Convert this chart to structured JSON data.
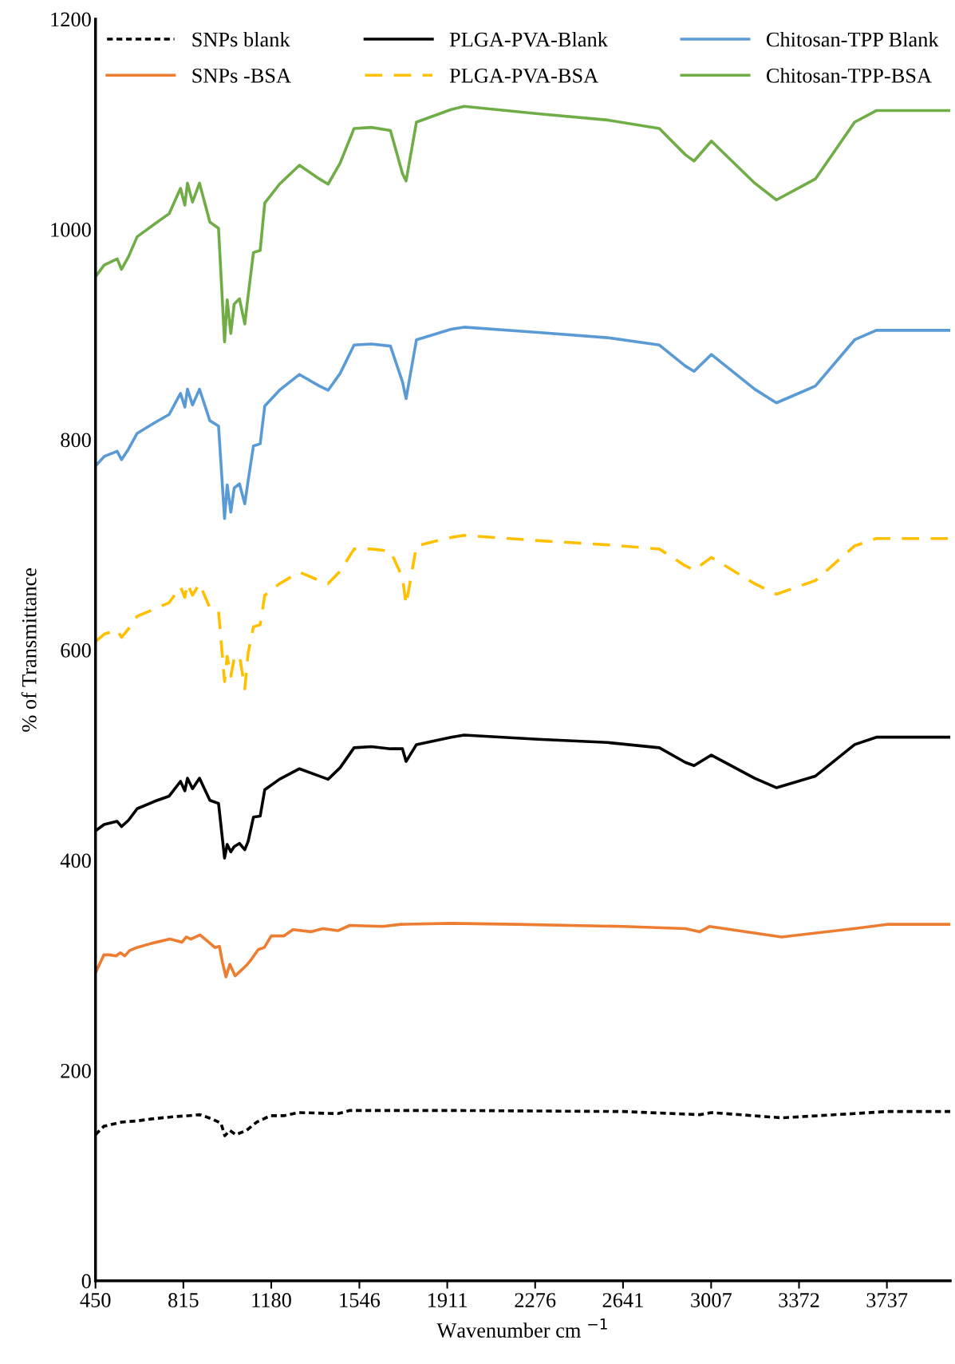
{
  "chart_data": {
    "type": "line",
    "xlabel": "Wavenumber cm $^{−1}$",
    "ylabel": "% of Transmittance",
    "xlim": [
      450,
      4000
    ],
    "xticks": [
      450,
      815,
      1180,
      1546,
      1911,
      2276,
      2641,
      3007,
      3372,
      3737
    ],
    "ylim": [
      0,
      1200
    ],
    "yticks": [
      0,
      200,
      400,
      600,
      800,
      1000,
      1200
    ],
    "grid": false,
    "legend": "top",
    "marker": "none",
    "x": [
      450,
      486,
      540,
      558,
      587,
      623,
      695,
      756,
      803,
      821,
      832,
      853,
      882,
      925,
      961,
      986,
      997,
      1012,
      1026,
      1048,
      1070,
      1084,
      1106,
      1134,
      1153,
      1214,
      1297,
      1380,
      1416,
      1466,
      1524,
      1596,
      1675,
      1725,
      1740,
      1783,
      1927,
      1981,
      2288,
      2576,
      2792,
      2900,
      2936,
      3008,
      3188,
      3278,
      3440,
      3603,
      3693,
      4000
    ],
    "series": [
      {
        "name": "SNPs blank",
        "color": "#000000",
        "line_style": "dotted",
        "x": [
          450,
          485,
          560,
          622,
          684,
          771,
          834,
          884,
          933,
          971,
          987,
          1008,
          1033,
          1077,
          1120,
          1176,
          1232,
          1294,
          1457,
          1506,
          1926,
          2641,
          2960,
          3008,
          3300,
          3600,
          3737,
          4000
        ],
        "values": [
          139,
          147,
          151,
          152,
          154,
          156,
          157,
          158,
          154,
          150,
          138,
          143,
          139,
          143,
          151,
          157,
          157,
          160,
          159,
          162,
          162,
          161,
          158,
          160,
          155,
          159,
          161,
          161
        ]
      },
      {
        "name": "SNPs -BSA",
        "color": "#ed7d31",
        "line_style": "solid",
        "x": [
          450,
          485,
          510,
          535,
          553,
          572,
          591,
          622,
          684,
          759,
          809,
          827,
          846,
          884,
          915,
          946,
          965,
          977,
          992,
          1008,
          1030,
          1058,
          1077,
          1095,
          1126,
          1151,
          1180,
          1232,
          1270,
          1344,
          1394,
          1457,
          1506,
          1643,
          1718,
          1926,
          2200,
          2641,
          2900,
          2960,
          3000,
          3300,
          3600,
          3737,
          4000
        ],
        "values": [
          293,
          310,
          310,
          309,
          312,
          309,
          314,
          317,
          321,
          325,
          322,
          327,
          325,
          329,
          323,
          317,
          318,
          303,
          289,
          301,
          290,
          296,
          300,
          305,
          315,
          317,
          328,
          328,
          334,
          332,
          335,
          333,
          338,
          337,
          339,
          340,
          339,
          337,
          335,
          332,
          337,
          327,
          335,
          339,
          339
        ]
      },
      {
        "name": "PLGA-PVA-Blank",
        "color": "#000000",
        "line_style": "solid",
        "values": [
          428,
          434,
          437,
          432,
          438,
          449,
          456,
          461,
          475,
          466,
          478,
          468,
          478,
          457,
          454,
          402,
          415,
          408,
          413,
          416,
          410,
          418,
          441,
          442,
          467,
          477,
          487,
          480,
          477,
          488,
          507,
          508,
          506,
          506,
          494,
          510,
          517,
          519,
          515,
          512,
          507,
          493,
          490,
          500,
          478,
          469,
          480,
          510,
          517,
          517
        ]
      },
      {
        "name": "PLGA-PVA-BSA",
        "color": "#ffc000",
        "line_style": "dashed",
        "values": [
          608,
          615,
          619,
          612,
          620,
          632,
          639,
          645,
          660,
          650,
          663,
          652,
          663,
          640,
          637,
          570,
          594,
          575,
          592,
          595,
          563,
          597,
          622,
          624,
          652,
          663,
          674,
          666,
          663,
          675,
          696,
          696,
          694,
          669,
          643,
          699,
          707,
          709,
          704,
          700,
          696,
          680,
          676,
          688,
          663,
          653,
          666,
          699,
          706,
          706
        ]
      },
      {
        "name": "Chitosan-TPP Blank",
        "color": "#5b9bd5",
        "line_style": "solid",
        "values": [
          775,
          784,
          789,
          781,
          791,
          806,
          816,
          824,
          844,
          831,
          848,
          833,
          848,
          818,
          813,
          725,
          757,
          731,
          754,
          758,
          739,
          761,
          794,
          796,
          832,
          847,
          862,
          851,
          847,
          863,
          890,
          891,
          889,
          855,
          839,
          895,
          905,
          907,
          902,
          897,
          890,
          870,
          865,
          881,
          848,
          835,
          851,
          895,
          904,
          904
        ]
      },
      {
        "name": "Chitosan-TPP-BSA",
        "color": "#70ad47",
        "line_style": "solid",
        "values": [
          955,
          966,
          972,
          962,
          974,
          993,
          1005,
          1015,
          1039,
          1023,
          1044,
          1026,
          1044,
          1007,
          1001,
          893,
          933,
          901,
          929,
          934,
          910,
          937,
          978,
          980,
          1025,
          1043,
          1061,
          1048,
          1043,
          1063,
          1096,
          1097,
          1094,
          1053,
          1046,
          1102,
          1114,
          1117,
          1110,
          1104,
          1096,
          1071,
          1065,
          1084,
          1044,
          1028,
          1048,
          1102,
          1113,
          1113
        ]
      }
    ]
  }
}
